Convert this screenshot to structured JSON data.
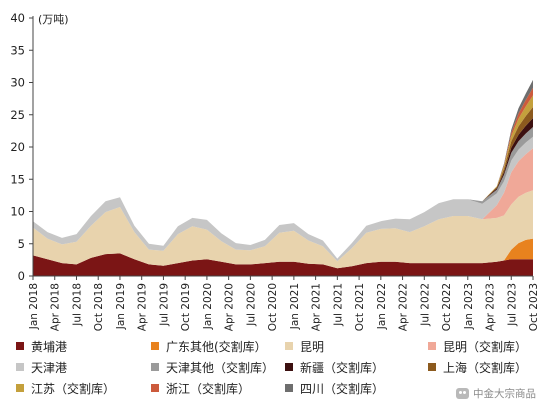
{
  "chart_data": {
    "type": "area",
    "stacked": true,
    "unit_label": "(万吨)",
    "ylim": [
      0,
      40
    ],
    "yticks": [
      0,
      5,
      10,
      15,
      20,
      25,
      30,
      35,
      40
    ],
    "x_tick_labels": [
      "Jan 2018",
      "Apr 2018",
      "Jul 2018",
      "Oct 2018",
      "Jan 2019",
      "Apr 2019",
      "Jul 2019",
      "Oct 2019",
      "Jan 2020",
      "Apr 2020",
      "Jul 2020",
      "Oct 2020",
      "Jan 2021",
      "Apr 2021",
      "Jul 2021",
      "Oct 2021",
      "Jan 2022",
      "Apr 2022",
      "Jul 2022",
      "Oct 2022",
      "Jan 2023",
      "Apr 2023",
      "Jul 2023",
      "Oct 2023"
    ],
    "grid": false,
    "legend_position": "bottom",
    "x_dates": [
      "2018-01",
      "2018-03",
      "2018-05",
      "2018-07",
      "2018-09",
      "2018-11",
      "2019-01",
      "2019-03",
      "2019-05",
      "2019-07",
      "2019-09",
      "2019-11",
      "2020-01",
      "2020-03",
      "2020-05",
      "2020-07",
      "2020-09",
      "2020-11",
      "2021-01",
      "2021-03",
      "2021-05",
      "2021-07",
      "2021-09",
      "2021-11",
      "2022-01",
      "2022-03",
      "2022-05",
      "2022-07",
      "2022-09",
      "2022-11",
      "2023-01",
      "2023-03",
      "2023-05",
      "2023-06",
      "2023-07",
      "2023-08",
      "2023-09",
      "2023-10"
    ],
    "series": [
      {
        "name": "黄埔港",
        "color": "#7b1515",
        "values": [
          3.2,
          2.6,
          2.0,
          1.8,
          2.8,
          3.4,
          3.5,
          2.6,
          1.8,
          1.6,
          2.0,
          2.4,
          2.6,
          2.2,
          1.8,
          1.8,
          2.0,
          2.2,
          2.2,
          1.9,
          1.8,
          1.2,
          1.5,
          2.0,
          2.2,
          2.2,
          2.0,
          2.0,
          2.0,
          2.0,
          2.0,
          2.0,
          2.2,
          2.4,
          2.6,
          2.6,
          2.6,
          2.6
        ]
      },
      {
        "name": "广东其他(交割库)",
        "color": "#e8821e",
        "values": [
          0,
          0,
          0,
          0,
          0,
          0,
          0,
          0,
          0,
          0,
          0,
          0,
          0,
          0,
          0,
          0,
          0,
          0,
          0,
          0,
          0,
          0,
          0,
          0,
          0,
          0,
          0,
          0,
          0,
          0,
          0,
          0,
          0,
          0,
          1.5,
          2.5,
          3.0,
          3.2
        ]
      },
      {
        "name": "昆明",
        "color": "#e8d3ad",
        "values": [
          4.3,
          3.2,
          2.9,
          3.5,
          5.0,
          6.5,
          7.2,
          4.2,
          2.3,
          2.3,
          4.5,
          5.3,
          4.6,
          3.2,
          2.3,
          2.2,
          2.6,
          4.5,
          4.8,
          3.6,
          2.8,
          1.1,
          2.8,
          4.7,
          5.1,
          5.2,
          4.8,
          5.7,
          6.8,
          7.3,
          7.3,
          6.8,
          6.8,
          7.0,
          7.0,
          7.2,
          7.3,
          7.5
        ]
      },
      {
        "name": "昆明（交割库）",
        "color": "#f0a898",
        "values": [
          0,
          0,
          0,
          0,
          0,
          0,
          0,
          0,
          0,
          0,
          0,
          0,
          0,
          0,
          0,
          0,
          0,
          0,
          0,
          0,
          0,
          0,
          0,
          0,
          0,
          0,
          0,
          0,
          0,
          0,
          0,
          0,
          2.0,
          3.5,
          5.0,
          5.5,
          6.0,
          6.5
        ]
      },
      {
        "name": "天津港",
        "color": "#c6c6c6",
        "values": [
          1.0,
          1.0,
          1.0,
          1.2,
          1.5,
          1.7,
          1.5,
          1.0,
          0.9,
          0.8,
          1.2,
          1.3,
          1.5,
          1.2,
          1.0,
          0.8,
          1.0,
          1.2,
          1.2,
          1.0,
          0.9,
          0.4,
          0.8,
          1.1,
          1.2,
          1.5,
          2.0,
          2.2,
          2.5,
          2.6,
          2.6,
          2.4,
          1.8,
          1.8,
          1.8,
          1.8,
          1.8,
          1.8
        ]
      },
      {
        "name": "天津其他（交割库）",
        "color": "#9a9a9a",
        "values": [
          0,
          0,
          0,
          0,
          0,
          0,
          0,
          0,
          0,
          0,
          0,
          0,
          0,
          0,
          0,
          0,
          0,
          0,
          0,
          0,
          0,
          0,
          0,
          0,
          0,
          0,
          0,
          0,
          0,
          0,
          0,
          0.4,
          0.6,
          1.0,
          1.2,
          1.3,
          1.4,
          1.5
        ]
      },
      {
        "name": "新疆（交割库）",
        "color": "#3c1010",
        "values": [
          0,
          0,
          0,
          0,
          0,
          0,
          0,
          0,
          0,
          0,
          0,
          0,
          0,
          0,
          0,
          0,
          0,
          0,
          0,
          0,
          0,
          0,
          0,
          0,
          0,
          0,
          0,
          0,
          0,
          0,
          0,
          0,
          0.2,
          0.4,
          0.8,
          1.0,
          1.2,
          1.4
        ]
      },
      {
        "name": "上海（交割库）",
        "color": "#8c5a1e",
        "values": [
          0,
          0,
          0,
          0,
          0,
          0,
          0,
          0,
          0,
          0,
          0,
          0,
          0,
          0,
          0,
          0,
          0,
          0,
          0,
          0,
          0,
          0,
          0,
          0,
          0,
          0,
          0,
          0,
          0,
          0,
          0,
          0,
          0.2,
          0.5,
          1.0,
          1.3,
          1.5,
          1.7
        ]
      },
      {
        "name": "江苏（交割库）",
        "color": "#c4a03c",
        "values": [
          0,
          0,
          0,
          0,
          0,
          0,
          0,
          0,
          0,
          0,
          0,
          0,
          0,
          0,
          0,
          0,
          0,
          0,
          0,
          0,
          0,
          0,
          0,
          0,
          0,
          0,
          0,
          0,
          0,
          0,
          0,
          0,
          0.1,
          0.4,
          0.8,
          1.2,
          1.5,
          1.8
        ]
      },
      {
        "name": "浙江（交割库）",
        "color": "#cc5a3c",
        "values": [
          0,
          0,
          0,
          0,
          0,
          0,
          0,
          0,
          0,
          0,
          0,
          0,
          0,
          0,
          0,
          0,
          0,
          0,
          0,
          0,
          0,
          0,
          0,
          0,
          0,
          0,
          0,
          0,
          0,
          0,
          0,
          0,
          0,
          0.2,
          0.5,
          0.8,
          1.0,
          1.2
        ]
      },
      {
        "name": "四川（交割库）",
        "color": "#6e6e6e",
        "values": [
          0,
          0,
          0,
          0,
          0,
          0,
          0,
          0,
          0,
          0,
          0,
          0,
          0,
          0,
          0,
          0,
          0,
          0,
          0,
          0,
          0,
          0,
          0,
          0,
          0,
          0,
          0,
          0,
          0,
          0,
          0,
          0,
          0,
          0.2,
          0.5,
          0.8,
          1.0,
          1.2
        ]
      }
    ]
  },
  "legend": [
    {
      "label": "黄埔港",
      "color": "#7b1515"
    },
    {
      "label": "广东其他(交割库）",
      "color": "#e8821e"
    },
    {
      "label": "昆明",
      "color": "#e8d3ad"
    },
    {
      "label": "昆明（交割库）",
      "color": "#f0a898"
    },
    {
      "label": "天津港",
      "color": "#c6c6c6"
    },
    {
      "label": "天津其他（交割库）",
      "color": "#9a9a9a"
    },
    {
      "label": "新疆（交割库）",
      "color": "#3c1010"
    },
    {
      "label": "上海（交割库）",
      "color": "#8c5a1e"
    },
    {
      "label": "江苏（交割库）",
      "color": "#c4a03c"
    },
    {
      "label": "浙江（交割库）",
      "color": "#cc5a3c"
    },
    {
      "label": "四川（交割库）",
      "color": "#6e6e6e"
    }
  ],
  "watermark": {
    "text": "中金大宗商品",
    "icon": "wechat-icon"
  }
}
